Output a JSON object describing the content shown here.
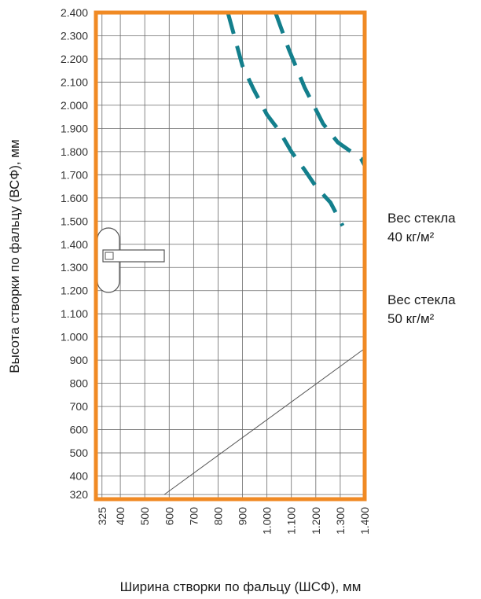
{
  "chart_data": {
    "type": "line",
    "xlabel": "Ширина створки по фальцу (ШСФ), мм",
    "ylabel": "Высота створки по фальцу (ВСФ), мм",
    "x_ticks": [
      "325",
      "400",
      "500",
      "600",
      "700",
      "800",
      "900",
      "1.000",
      "1.100",
      "1.200",
      "1.300",
      "1.400"
    ],
    "y_ticks": [
      "320",
      "400",
      "500",
      "600",
      "700",
      "800",
      "900",
      "1.000",
      "1.100",
      "1.200",
      "1.300",
      "1.400",
      "1.500",
      "1.600",
      "1.700",
      "1.800",
      "1.900",
      "2.000",
      "2.100",
      "2.200",
      "2.300",
      "2.400"
    ],
    "xlim": [
      300,
      1400
    ],
    "ylim": [
      300,
      2400
    ],
    "grid": true,
    "frame_color": "#F08A24",
    "series_color": "#137F8C",
    "grid_color": "#6b6b6b",
    "legend_entries": [
      {
        "line1": "Вес стекла",
        "line2": "40 кг/м²"
      },
      {
        "line1": "Вес стекла",
        "line2": "50 кг/м²"
      }
    ],
    "series": [
      {
        "style": "dashed",
        "legend_index": 0,
        "points": [
          [
            1035,
            2400
          ],
          [
            1090,
            2240
          ],
          [
            1155,
            2075
          ],
          [
            1230,
            1920
          ],
          [
            1290,
            1840
          ],
          [
            1385,
            1770
          ],
          [
            1400,
            1740
          ],
          [
            1400,
            1200
          ]
        ]
      },
      {
        "style": "dashed",
        "legend_index": 1,
        "points": [
          [
            840,
            2400
          ],
          [
            900,
            2170
          ],
          [
            945,
            2070
          ],
          [
            1000,
            1960
          ],
          [
            1050,
            1890
          ],
          [
            1100,
            1800
          ],
          [
            1155,
            1720
          ],
          [
            1200,
            1650
          ],
          [
            1260,
            1580
          ],
          [
            1310,
            1480
          ]
        ]
      },
      {
        "style": "solid-thin",
        "points": [
          [
            580,
            320
          ],
          [
            1400,
            950
          ]
        ]
      }
    ],
    "icons": [
      "window-handle-icon"
    ]
  }
}
